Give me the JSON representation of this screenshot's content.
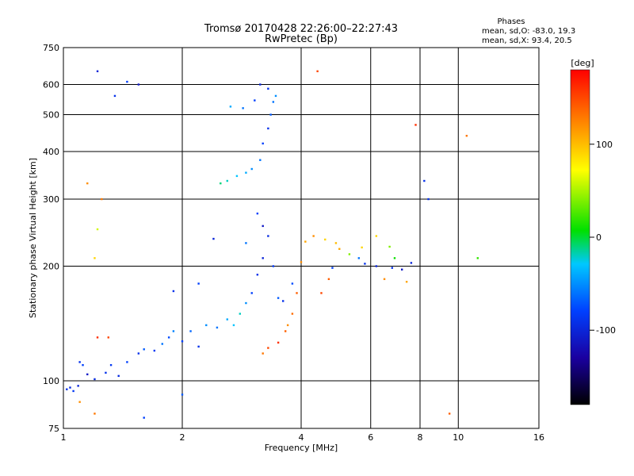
{
  "chart_data": {
    "type": "scatter",
    "title": "Tromsø 20170428 22:26:00–22:27:43",
    "subtitle": "RwPretec (Bp)",
    "xlabel": "Frequency [MHz]",
    "ylabel": "Stationary phase Virtual Height [km]",
    "x_scale": "log",
    "y_scale": "log",
    "xlim": [
      1,
      16
    ],
    "ylim": [
      75,
      750
    ],
    "x_ticks": [
      1,
      2,
      4,
      6,
      8,
      10,
      16
    ],
    "y_ticks": [
      75,
      100,
      200,
      300,
      400,
      500,
      600,
      750
    ],
    "grid": true,
    "legend_title": "Phases",
    "stats": [
      "mean, sd,O: -83.0, 19.3",
      "mean, sd,X:  93.4, 20.5"
    ],
    "colorbar": {
      "label": "[deg]",
      "range": [
        -180,
        180
      ],
      "ticks": [
        100,
        0,
        -100
      ],
      "colors": [
        "#000000",
        "#1a00a0",
        "#0040ff",
        "#00c8ff",
        "#00e000",
        "#ffff00",
        "#ff8000",
        "#ff0000"
      ]
    },
    "series": [
      {
        "values": [
          [
            1.02,
            95,
            -90
          ],
          [
            1.04,
            96,
            -95
          ],
          [
            1.06,
            94,
            -85
          ],
          [
            1.09,
            97,
            -100
          ],
          [
            1.1,
            112,
            -90
          ],
          [
            1.12,
            110,
            -80
          ],
          [
            1.15,
            104,
            -110
          ],
          [
            1.2,
            101,
            -95
          ],
          [
            1.28,
            105,
            -90
          ],
          [
            1.32,
            110,
            -85
          ],
          [
            1.38,
            103,
            -95
          ],
          [
            1.45,
            112,
            -80
          ],
          [
            1.55,
            118,
            -90
          ],
          [
            1.6,
            121,
            -70
          ],
          [
            1.7,
            120,
            -85
          ],
          [
            1.78,
            125,
            -60
          ],
          [
            1.85,
            130,
            -75
          ],
          [
            1.9,
            135,
            -55
          ],
          [
            2.0,
            127,
            -80
          ],
          [
            2.1,
            135,
            -65
          ],
          [
            2.2,
            123,
            -90
          ],
          [
            2.3,
            140,
            -50
          ],
          [
            2.45,
            138,
            -60
          ],
          [
            2.6,
            145,
            -40
          ],
          [
            2.7,
            140,
            -30
          ],
          [
            2.8,
            150,
            -20
          ],
          [
            2.9,
            160,
            -50
          ],
          [
            3.0,
            170,
            -80
          ],
          [
            3.1,
            190,
            -90
          ],
          [
            3.2,
            210,
            -100
          ],
          [
            3.3,
            240,
            -95
          ],
          [
            3.4,
            200,
            -85
          ],
          [
            3.5,
            165,
            -70
          ],
          [
            3.6,
            162,
            -90
          ],
          [
            3.8,
            180,
            -75
          ],
          [
            3.1,
            275,
            -80
          ],
          [
            3.2,
            255,
            -110
          ],
          [
            2.9,
            230,
            -60
          ],
          [
            2.4,
            236,
            -100
          ],
          [
            2.5,
            330,
            -10
          ],
          [
            2.6,
            335,
            -20
          ],
          [
            2.75,
            345,
            -30
          ],
          [
            2.9,
            352,
            -40
          ],
          [
            3.0,
            360,
            -50
          ],
          [
            3.15,
            380,
            -60
          ],
          [
            3.2,
            420,
            -80
          ],
          [
            3.3,
            460,
            -90
          ],
          [
            3.35,
            500,
            -70
          ],
          [
            3.4,
            540,
            -60
          ],
          [
            3.45,
            560,
            -50
          ],
          [
            3.3,
            585,
            -90
          ],
          [
            3.15,
            600,
            -100
          ],
          [
            3.05,
            545,
            -80
          ],
          [
            2.85,
            520,
            -60
          ],
          [
            2.65,
            525,
            -40
          ],
          [
            1.22,
            650,
            -100
          ],
          [
            1.35,
            560,
            -90
          ],
          [
            1.45,
            610,
            -80
          ],
          [
            1.55,
            600,
            -110
          ],
          [
            1.9,
            172,
            -90
          ],
          [
            2.2,
            180,
            -80
          ],
          [
            3.65,
            135,
            140
          ],
          [
            3.5,
            126,
            160
          ],
          [
            3.3,
            122,
            150
          ],
          [
            3.2,
            118,
            130
          ],
          [
            3.7,
            140,
            120
          ],
          [
            3.8,
            150,
            135
          ],
          [
            3.9,
            170,
            140
          ],
          [
            4.0,
            205,
            120
          ],
          [
            4.1,
            232,
            110
          ],
          [
            4.3,
            240,
            120
          ],
          [
            4.6,
            235,
            90
          ],
          [
            4.9,
            230,
            100
          ],
          [
            5.0,
            222,
            110
          ],
          [
            5.3,
            215,
            40
          ],
          [
            5.6,
            210,
            -60
          ],
          [
            5.8,
            203,
            -90
          ],
          [
            6.2,
            200,
            -100
          ],
          [
            6.8,
            198,
            -90
          ],
          [
            7.2,
            196,
            -110
          ],
          [
            7.6,
            204,
            -100
          ],
          [
            5.7,
            224,
            90
          ],
          [
            4.8,
            198,
            -80
          ],
          [
            4.7,
            185,
            140
          ],
          [
            4.5,
            170,
            150
          ],
          [
            6.5,
            185,
            120
          ],
          [
            7.4,
            182,
            110
          ],
          [
            6.2,
            240,
            90
          ],
          [
            6.7,
            225,
            40
          ],
          [
            6.9,
            210,
            10
          ],
          [
            1.22,
            130,
            160
          ],
          [
            1.3,
            130,
            150
          ],
          [
            1.2,
            210,
            90
          ],
          [
            1.22,
            250,
            60
          ],
          [
            1.15,
            330,
            120
          ],
          [
            1.25,
            300,
            130
          ],
          [
            4.4,
            650,
            150
          ],
          [
            7.8,
            470,
            160
          ],
          [
            8.2,
            335,
            -90
          ],
          [
            8.4,
            300,
            -90
          ],
          [
            1.1,
            88,
            120
          ],
          [
            1.2,
            82,
            130
          ],
          [
            1.6,
            80,
            -80
          ],
          [
            2.0,
            92,
            -70
          ],
          [
            10.5,
            440,
            130
          ],
          [
            11.2,
            210,
            20
          ],
          [
            9.5,
            82,
            140
          ]
        ]
      }
    ]
  }
}
